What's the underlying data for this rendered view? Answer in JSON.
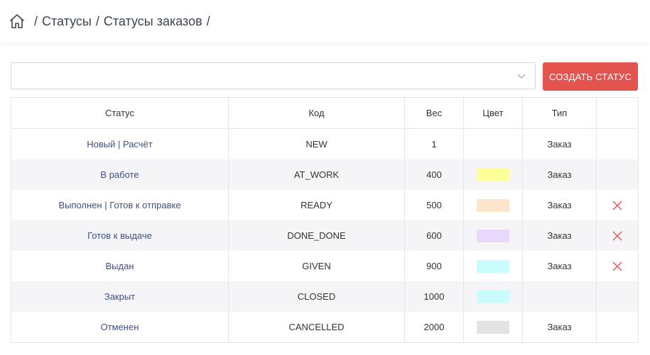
{
  "breadcrumb": {
    "icon": "home-icon",
    "items": [
      "Статусы",
      "Статусы заказов"
    ],
    "separator": "/"
  },
  "toolbar": {
    "select_value": "",
    "create_label": "СОЗДАТЬ СТАТУС",
    "accent_color": "#e5534f"
  },
  "table": {
    "headers": {
      "status": "Статус",
      "code": "Код",
      "weight": "Вес",
      "color": "Цвет",
      "type": "Тип",
      "actions": ""
    },
    "rows": [
      {
        "status": "Новый | Расчёт",
        "code": "NEW",
        "weight": "1",
        "color": "",
        "type": "Заказ",
        "deletable": false
      },
      {
        "status": "В работе",
        "code": "AT_WORK",
        "weight": "400",
        "color": "#ffff99",
        "type": "Заказ",
        "deletable": false
      },
      {
        "status": "Выполнен | Готов к отправке",
        "code": "READY",
        "weight": "500",
        "color": "#fde5cc",
        "type": "Заказ",
        "deletable": true
      },
      {
        "status": "Готов к выдаче",
        "code": "DONE_DONE",
        "weight": "600",
        "color": "#e8d9fc",
        "type": "Заказ",
        "deletable": true
      },
      {
        "status": "Выдан",
        "code": "GIVEN",
        "weight": "900",
        "color": "#c9fcfc",
        "type": "Заказ",
        "deletable": true
      },
      {
        "status": "Закрыт",
        "code": "CLOSED",
        "weight": "1000",
        "color": "#c9fcfc",
        "type": "",
        "deletable": false
      },
      {
        "status": "Отменен",
        "code": "CANCELLED",
        "weight": "2000",
        "color": "#e3e3e3",
        "type": "Заказ",
        "deletable": false
      }
    ]
  }
}
